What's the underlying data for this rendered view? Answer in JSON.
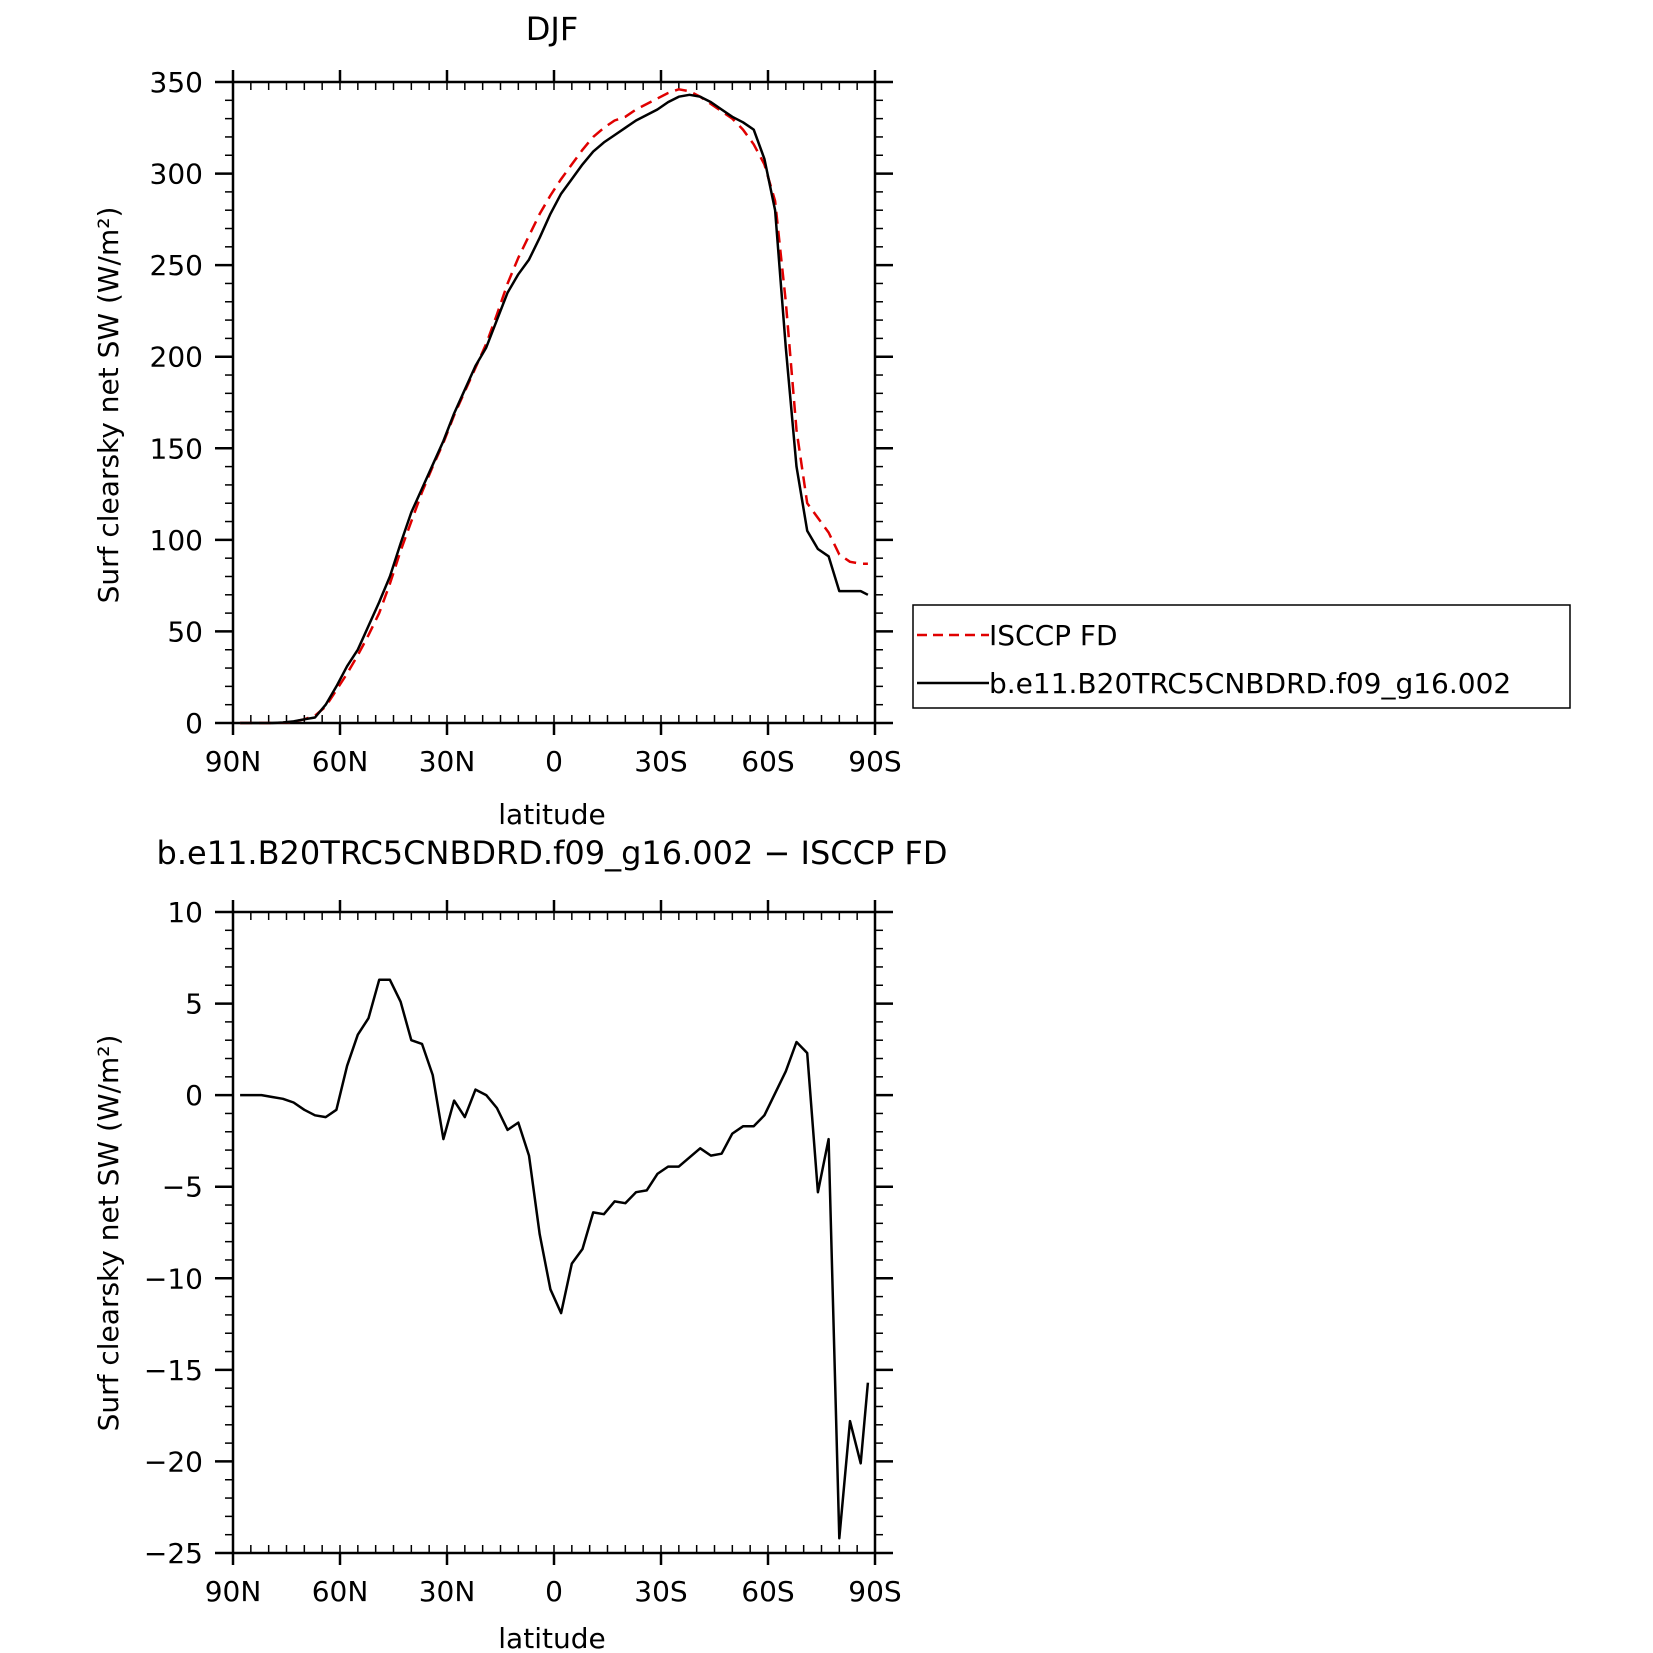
{
  "chart_data": [
    {
      "type": "line",
      "title": "DJF",
      "xlabel": "latitude",
      "ylabel": "Surf clearsky net SW (W/m²)",
      "xlim": [
        90,
        -90
      ],
      "ylim": [
        0,
        350
      ],
      "xticks": [
        {
          "value": 90,
          "label": "90N"
        },
        {
          "value": 60,
          "label": "60N"
        },
        {
          "value": 30,
          "label": "30N"
        },
        {
          "value": 0,
          "label": "0"
        },
        {
          "value": -30,
          "label": "30S"
        },
        {
          "value": -60,
          "label": "60S"
        },
        {
          "value": -90,
          "label": "90S"
        }
      ],
      "yticks": [
        {
          "value": 0,
          "label": "0"
        },
        {
          "value": 50,
          "label": "50"
        },
        {
          "value": 100,
          "label": "100"
        },
        {
          "value": 150,
          "label": "150"
        },
        {
          "value": 200,
          "label": "200"
        },
        {
          "value": 250,
          "label": "250"
        },
        {
          "value": 300,
          "label": "300"
        },
        {
          "value": 350,
          "label": "350"
        }
      ],
      "legend_placement": "right, outside plot",
      "series": [
        {
          "name": "ISCCP FD",
          "color": "#e00000",
          "dash": "dashed",
          "x": [
            88,
            85,
            82,
            79,
            76,
            73,
            70,
            67,
            64,
            61,
            58,
            55,
            52,
            49,
            46,
            43,
            40,
            37,
            34,
            31,
            28,
            25,
            22,
            19,
            16,
            13,
            10,
            7,
            4,
            1,
            -2,
            -5,
            -8,
            -11,
            -14,
            -17,
            -20,
            -23,
            -26,
            -29,
            -32,
            -35,
            -38,
            -41,
            -44,
            -47,
            -50,
            -53,
            -56,
            -59,
            -62,
            -65,
            -68,
            -71,
            -74,
            -77,
            -80,
            -83,
            -86,
            -88
          ],
          "y": [
            0,
            0,
            0,
            0,
            0.2,
            0.7,
            2,
            4,
            9,
            18,
            27,
            37,
            48,
            60,
            76,
            94,
            110,
            126,
            140,
            153,
            168,
            181,
            194,
            207,
            223,
            240,
            254,
            266,
            278,
            288,
            297,
            305,
            313,
            320,
            325,
            329,
            331,
            335,
            338,
            341,
            344,
            346,
            345,
            342,
            338,
            334,
            330,
            324,
            316,
            305,
            285,
            230,
            160,
            120,
            112,
            104,
            92,
            88,
            87,
            87
          ]
        },
        {
          "name": "b.e11.B20TRC5CNBDRD.f09_g16.002",
          "color": "#000000",
          "dash": "solid",
          "x": [
            88,
            85,
            82,
            79,
            76,
            73,
            70,
            67,
            64,
            61,
            58,
            55,
            52,
            49,
            46,
            43,
            40,
            37,
            34,
            31,
            28,
            25,
            22,
            19,
            16,
            13,
            10,
            7,
            4,
            1,
            -2,
            -5,
            -8,
            -11,
            -14,
            -17,
            -20,
            -23,
            -26,
            -29,
            -32,
            -35,
            -38,
            -41,
            -44,
            -47,
            -50,
            -53,
            -56,
            -59,
            -62,
            -65,
            -68,
            -71,
            -74,
            -77,
            -80,
            -83,
            -86,
            -88
          ],
          "y": [
            0,
            0,
            0,
            0,
            0.3,
            0.9,
            2,
            3,
            10,
            20,
            31,
            40,
            53,
            66,
            80,
            98,
            115,
            128,
            141,
            154,
            169,
            182,
            195,
            205,
            220,
            235,
            245,
            253,
            265,
            278,
            289,
            297,
            305,
            312,
            317,
            321,
            325,
            329,
            332,
            335,
            339,
            342,
            343,
            342,
            339,
            335,
            331,
            328,
            324,
            308,
            280,
            205,
            140,
            105,
            95,
            91,
            72,
            72,
            72,
            70
          ]
        }
      ]
    },
    {
      "type": "line",
      "title": "b.e11.B20TRC5CNBDRD.f09_g16.002 − ISCCP FD",
      "xlabel": "latitude",
      "ylabel": "Surf clearsky net SW (W/m²)",
      "xlim": [
        90,
        -90
      ],
      "ylim": [
        -25,
        10
      ],
      "xticks": [
        {
          "value": 90,
          "label": "90N"
        },
        {
          "value": 60,
          "label": "60N"
        },
        {
          "value": 30,
          "label": "30N"
        },
        {
          "value": 0,
          "label": "0"
        },
        {
          "value": -30,
          "label": "30S"
        },
        {
          "value": -60,
          "label": "60S"
        },
        {
          "value": -90,
          "label": "90S"
        }
      ],
      "yticks": [
        {
          "value": -25,
          "label": "−25"
        },
        {
          "value": -20,
          "label": "−20"
        },
        {
          "value": -15,
          "label": "−15"
        },
        {
          "value": -10,
          "label": "−10"
        },
        {
          "value": -5,
          "label": "−5"
        },
        {
          "value": 0,
          "label": "0"
        },
        {
          "value": 5,
          "label": "5"
        },
        {
          "value": 10,
          "label": "10"
        }
      ],
      "series": [
        {
          "color": "#000000",
          "dash": "solid",
          "x": [
            88,
            85,
            82,
            79,
            76,
            73,
            70,
            67,
            64,
            61,
            58,
            55,
            52,
            49,
            46,
            43,
            40,
            37,
            34,
            31,
            28,
            25,
            22,
            19,
            16,
            13,
            10,
            7,
            4,
            1,
            -2,
            -5,
            -8,
            -11,
            -14,
            -17,
            -20,
            -23,
            -26,
            -29,
            -32,
            -35,
            -38,
            -41,
            -44,
            -47,
            -50,
            -53,
            -56,
            -59,
            -62,
            -65,
            -68,
            -71,
            -74,
            -77,
            -80,
            -83,
            -86,
            -88
          ],
          "y": [
            0,
            0,
            0,
            -0.1,
            -0.2,
            -0.4,
            -0.8,
            -1.1,
            -1.2,
            -0.8,
            1.6,
            3.3,
            4.2,
            6.3,
            6.3,
            5.1,
            3.0,
            2.8,
            1.1,
            -2.4,
            -0.3,
            -1.2,
            0.3,
            0,
            -0.7,
            -1.9,
            -1.5,
            -3.3,
            -7.6,
            -10.6,
            -11.9,
            -9.2,
            -8.4,
            -6.4,
            -6.5,
            -5.8,
            -5.9,
            -5.3,
            -5.2,
            -4.3,
            -3.9,
            -3.9,
            -3.4,
            -2.9,
            -3.3,
            -3.2,
            -2.1,
            -1.7,
            -1.7,
            -1.1,
            0.1,
            1.3,
            2.9,
            2.3,
            -5.3,
            -2.4,
            -24.2,
            -17.8,
            -20.1,
            -15.7
          ]
        }
      ]
    }
  ]
}
